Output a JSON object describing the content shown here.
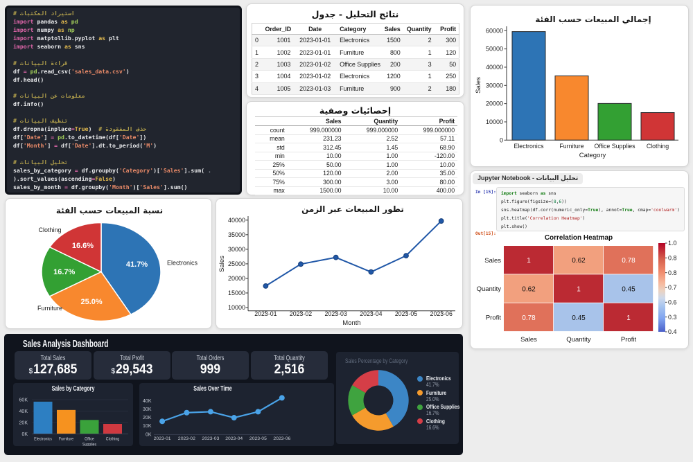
{
  "code_editor": {
    "lines": [
      [
        [
          "c",
          "# استيراد المكتبات"
        ]
      ],
      [
        [
          "k",
          "import"
        ],
        [
          "w",
          " pandas "
        ],
        [
          "y",
          "as"
        ],
        [
          "g",
          " pd"
        ]
      ],
      [
        [
          "k",
          "import"
        ],
        [
          "w",
          " numpy "
        ],
        [
          "y",
          "as"
        ],
        [
          "g",
          " np"
        ]
      ],
      [
        [
          "k",
          "import"
        ],
        [
          "w",
          " matptollib.pyplot "
        ],
        [
          "y",
          "as"
        ],
        [
          "w",
          " plt"
        ]
      ],
      [
        [
          "k",
          "import"
        ],
        [
          "w",
          " seaborn "
        ],
        [
          "y",
          "as"
        ],
        [
          "w",
          " sns"
        ]
      ],
      [],
      [
        [
          "c",
          "# قراءة البيانات"
        ]
      ],
      [
        [
          "w",
          "df "
        ],
        [
          "k",
          "="
        ],
        [
          "w",
          " "
        ],
        [
          "g",
          "pd"
        ],
        [
          "w",
          ".read_csv("
        ],
        [
          "s",
          "'sales_data.csv'"
        ],
        [
          "w",
          ")"
        ]
      ],
      [
        [
          "w",
          "df.head()"
        ]
      ],
      [],
      [
        [
          "c",
          "# معلومات عن البيانات"
        ]
      ],
      [
        [
          "w",
          "df.info()"
        ]
      ],
      [],
      [
        [
          "c",
          "# تنظيف البيانات"
        ]
      ],
      [
        [
          "w",
          "df.dropna(inplace"
        ],
        [
          "k",
          "="
        ],
        [
          "y",
          "True"
        ],
        [
          "w",
          ")  "
        ],
        [
          "c",
          "# حذف المفقودة"
        ]
      ],
      [
        [
          "w",
          "df["
        ],
        [
          "s",
          "'Date'"
        ],
        [
          "w",
          "] "
        ],
        [
          "k",
          "="
        ],
        [
          "w",
          " "
        ],
        [
          "g",
          "pd"
        ],
        [
          "w",
          ".to_datetime(df["
        ],
        [
          "s",
          "'Date'"
        ],
        [
          "w",
          "])"
        ]
      ],
      [
        [
          "w",
          "df["
        ],
        [
          "s",
          "'Month'"
        ],
        [
          "w",
          "] "
        ],
        [
          "k",
          "="
        ],
        [
          "w",
          " df["
        ],
        [
          "s",
          "'Date'"
        ],
        [
          "w",
          "].dt.to_period("
        ],
        [
          "s",
          "'M'"
        ],
        [
          "w",
          ")"
        ]
      ],
      [],
      [
        [
          "c",
          "# تحليل البيانات"
        ]
      ],
      [
        [
          "w",
          "sales_by_category "
        ],
        [
          "k",
          "="
        ],
        [
          "w",
          " df.groupby("
        ],
        [
          "s",
          "'Category'"
        ],
        [
          "w",
          ")["
        ],
        [
          "s",
          "'Sales'"
        ],
        [
          "w",
          "].sum("
        ],
        [
          "d",
          " ."
        ]
      ],
      [
        [
          "w",
          ").sort_values(ascending"
        ],
        [
          "k",
          "="
        ],
        [
          "y",
          "False"
        ],
        [
          "w",
          ")"
        ]
      ],
      [
        [
          "w",
          "sales_by_month "
        ],
        [
          "k",
          "="
        ],
        [
          "w",
          " df.groupby("
        ],
        [
          "s",
          "'Month'"
        ],
        [
          "w",
          ")["
        ],
        [
          "s",
          "'Sales'"
        ],
        [
          "w",
          "].sum()"
        ]
      ]
    ]
  },
  "results_card": {
    "title": "نتائج التحليل - جدول",
    "table": {
      "columns": [
        "",
        "Order_ID",
        "Date",
        "Category",
        "Sales",
        "Quantity",
        "Profit"
      ],
      "rows": [
        [
          "0",
          "1001",
          "2023-01-01",
          "Electronics",
          "1500",
          "2",
          "300"
        ],
        [
          "1",
          "1002",
          "2023-01-01",
          "Furniture",
          "800",
          "1",
          "120"
        ],
        [
          "2",
          "1003",
          "2023-01-02",
          "Office Supplies",
          "200",
          "3",
          "50"
        ],
        [
          "3",
          "1004",
          "2023-01-02",
          "Electronics",
          "1200",
          "1",
          "250"
        ],
        [
          "4",
          "1005",
          "2023-01-03",
          "Furniture",
          "900",
          "2",
          "180"
        ]
      ]
    }
  },
  "stats_card": {
    "title": "إحصائيات وصفية",
    "table": {
      "columns": [
        "",
        "Sales",
        "Quantity",
        "Profit"
      ],
      "rows": [
        [
          "count",
          "999.000000",
          "999.000000",
          "999.000000"
        ],
        [
          "mean",
          "231.23",
          "2.52",
          "57.11"
        ],
        [
          "std",
          "312.45",
          "1.45",
          "68.90"
        ],
        [
          "min",
          "10.00",
          "1.00",
          "-120.00"
        ],
        [
          "25%",
          "50.00",
          "1.00",
          "10.00"
        ],
        [
          "50%",
          "120.00",
          "2.00",
          "35.00"
        ],
        [
          "75%",
          "300.00",
          "3.00",
          "80.00"
        ],
        [
          "max",
          "1500.00",
          "10.00",
          "400.00"
        ]
      ]
    }
  },
  "notebook": {
    "header": "Jupyter Notebook - تحليل البيانات",
    "in_label": "In [15]:",
    "out_label": "Out[15]:",
    "code_lines": [
      [
        [
          "nk",
          "import"
        ],
        [
          "np",
          " seaborn "
        ],
        [
          "nk",
          "as"
        ],
        [
          "np",
          " sns"
        ]
      ],
      [
        [
          "np",
          "plt.figure(figsize=("
        ],
        [
          "nn",
          "8"
        ],
        [
          "np",
          ","
        ],
        [
          "nn",
          "6"
        ],
        [
          "np",
          "))"
        ]
      ],
      [
        [
          "np",
          "sns.heatmap(df.corr(numeric_only="
        ],
        [
          "nk",
          "True"
        ],
        [
          "np",
          "), annot="
        ],
        [
          "nk",
          "True"
        ],
        [
          "np",
          ", cmap="
        ],
        [
          "ns",
          "'coolwarm'"
        ],
        [
          "np",
          ")"
        ]
      ],
      [
        [
          "np",
          "plt.title("
        ],
        [
          "ns",
          "'Correlation Heatmap'"
        ],
        [
          "np",
          ")"
        ]
      ],
      [
        [
          "np",
          "plt.show()"
        ]
      ]
    ]
  },
  "dashboard": {
    "title": "Sales Analysis Dashboard",
    "kpis": [
      {
        "label": "Total Sales",
        "prefix": "$",
        "value": "127,685"
      },
      {
        "label": "Total Profit",
        "prefix": "$",
        "value": "29,543"
      },
      {
        "label": "Total Orders",
        "prefix": "",
        "value": "999"
      },
      {
        "label": "Total Quantity",
        "prefix": "",
        "value": "2,516"
      }
    ],
    "legend": [
      {
        "label": "Electronics",
        "pct": "41.7%",
        "color": "#3c86c6"
      },
      {
        "label": "Furniture",
        "pct": "25.0%",
        "color": "#f59b2d"
      },
      {
        "label": "Office Supplies",
        "pct": "16.7%",
        "color": "#3fa33f"
      },
      {
        "label": "Clothing",
        "pct": "16.6%",
        "color": "#d53e47"
      }
    ]
  },
  "chart_data": [
    {
      "type": "bar",
      "title": "إجمالي المبيعات حسب الفئة",
      "xlabel": "Category",
      "ylabel": "Sales",
      "categories": [
        "Electronics",
        "Furniture",
        "Office Supplies",
        "Clothing"
      ],
      "values": [
        59500,
        35200,
        20100,
        15100
      ],
      "colors": [
        "#2d74b5",
        "#f8882e",
        "#33a033",
        "#d03536"
      ],
      "edge": "#26282b",
      "ylim": [
        0,
        63000
      ],
      "yticks": [
        {
          "v": 0,
          "l": "0"
        },
        {
          "v": 10000,
          "l": "10000"
        },
        {
          "v": 20000,
          "l": "20000"
        },
        {
          "v": 30000,
          "l": "30000"
        },
        {
          "v": 40000,
          "l": "40000"
        },
        {
          "v": 50000,
          "l": "50000"
        },
        {
          "v": 60000,
          "l": "60000"
        }
      ]
    },
    {
      "type": "pie",
      "title": "نسبة المبيعات حسب الفئة",
      "labels": [
        "Electronics",
        "Furniture",
        "Office Supplies",
        "Clothing"
      ],
      "values": [
        41.7,
        25.0,
        16.7,
        16.6
      ],
      "pct_labels": [
        "41.7%",
        "25.0%",
        "16.7%",
        "16.6%"
      ],
      "outside_labels": [
        "Electronics",
        "Furniture",
        "",
        "Clothing"
      ],
      "colors": [
        "#2d74b5",
        "#f8882e",
        "#33a033",
        "#d03536"
      ]
    },
    {
      "type": "line",
      "title": "تطور المبيعات عبر الزمن",
      "xlabel": "Month",
      "ylabel": "Sales",
      "x": [
        "2023-01",
        "2023-02",
        "2023-03",
        "2023-04",
        "2023-05",
        "2023-06"
      ],
      "values": [
        17400,
        24900,
        27200,
        22200,
        27800,
        39700
      ],
      "color": "#2057a7",
      "marker_edge": "#173f79",
      "ylim": [
        10000,
        41000
      ],
      "yticks": [
        {
          "v": 10000,
          "l": "10000"
        },
        {
          "v": 15000,
          "l": "15000"
        },
        {
          "v": 20000,
          "l": "20000"
        },
        {
          "v": 25000,
          "l": "25000"
        },
        {
          "v": 30000,
          "l": "30000"
        },
        {
          "v": 35000,
          "l": "35000"
        },
        {
          "v": 40000,
          "l": "40000"
        }
      ]
    },
    {
      "type": "heatmap",
      "title": "Correlation Heatmap",
      "labels": [
        "Sales",
        "Quantity",
        "Profit"
      ],
      "matrix": [
        [
          1,
          0.62,
          0.78
        ],
        [
          0.62,
          1,
          0.45
        ],
        [
          0.78,
          0.45,
          1
        ]
      ],
      "cell_text": [
        [
          "1",
          "0.62",
          "0.78"
        ],
        [
          "0.62",
          "1",
          "0.45"
        ],
        [
          "0.78",
          "0.45",
          "1"
        ]
      ],
      "cell_colors": [
        [
          "#bb2a33",
          "#f2a07e",
          "#e0715a"
        ],
        [
          "#f2a07e",
          "#bb2a33",
          "#a8c3ea"
        ],
        [
          "#e0715a",
          "#a8c3ea",
          "#bb2a33"
        ]
      ],
      "text_colors": [
        [
          "#ffffff",
          "#111111",
          "#ffffff"
        ],
        [
          "#111111",
          "#ffffff",
          "#111111"
        ],
        [
          "#ffffff",
          "#111111",
          "#ffffff"
        ]
      ],
      "colorbar_ticks": [
        "1.0",
        "0.8",
        "0.8",
        "0.7",
        "0.6",
        "0.3",
        "0.4"
      ],
      "colorbar_stops": [
        {
          "o": 0.0,
          "c": "#b40426"
        },
        {
          "o": 0.18,
          "c": "#d6604d"
        },
        {
          "o": 0.32,
          "c": "#f08a6c"
        },
        {
          "o": 0.45,
          "c": "#f7b89c"
        },
        {
          "o": 0.54,
          "c": "#ead3c3"
        },
        {
          "o": 0.62,
          "c": "#cdd9ec"
        },
        {
          "o": 0.72,
          "c": "#a5c3ee"
        },
        {
          "o": 0.85,
          "c": "#7fa3f0"
        },
        {
          "o": 1.0,
          "c": "#4a5fc8"
        }
      ]
    },
    {
      "type": "bar",
      "title": "Sales by Category",
      "categories": [
        "Electronics",
        "Furniture",
        "Office\nSupplies",
        "Clothing"
      ],
      "values": [
        56500,
        42000,
        24500,
        17600
      ],
      "colors": [
        "#2d7fc2",
        "#f6921f",
        "#3aa23b",
        "#cf3940"
      ],
      "ylim": [
        0,
        60000
      ],
      "yticks": [
        {
          "v": 0,
          "l": "0K"
        },
        {
          "v": 20000,
          "l": "20K"
        },
        {
          "v": 40000,
          "l": "40K"
        },
        {
          "v": 60000,
          "l": "60K"
        }
      ]
    },
    {
      "type": "line",
      "title": "Sales Over Time",
      "x": [
        "2023-01",
        "2023-02",
        "2023-03",
        "2023-04",
        "2023-05",
        "2023-06"
      ],
      "values": [
        15300,
        25600,
        26700,
        19600,
        26700,
        43200
      ],
      "color": "#4aa3e8",
      "ylim": [
        0,
        40000
      ],
      "yticks": [
        {
          "v": 0,
          "l": "0K"
        },
        {
          "v": 10000,
          "l": "10K"
        },
        {
          "v": 20000,
          "l": "20K"
        },
        {
          "v": 30000,
          "l": "30K"
        },
        {
          "v": 40000,
          "l": "40K"
        }
      ]
    },
    {
      "type": "donut",
      "title": "Sales Percentage by Category",
      "labels": [
        "Electronics",
        "Furniture",
        "Office Supplies",
        "Clothing"
      ],
      "values": [
        41.7,
        25.0,
        16.7,
        16.6
      ],
      "colors": [
        "#3c86c6",
        "#f59b2d",
        "#3fa33f",
        "#d53e47"
      ]
    }
  ]
}
